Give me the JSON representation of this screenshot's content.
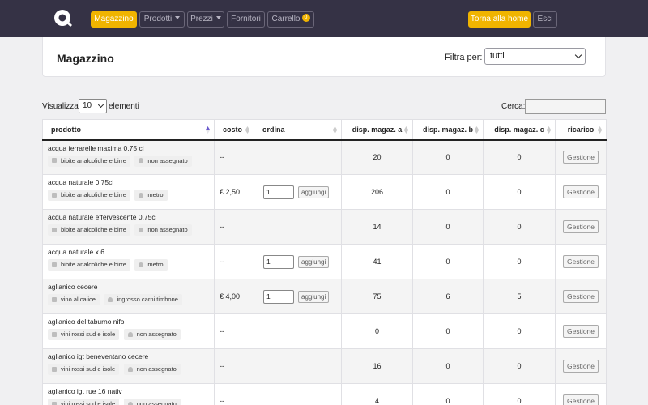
{
  "nav": {
    "items": [
      {
        "label": "Magazzino",
        "active": true
      },
      {
        "label": "Prodotti",
        "dropdown": true
      },
      {
        "label": "Prezzi",
        "dropdown": true
      },
      {
        "label": "Fornitori"
      },
      {
        "label": "Carrello",
        "badge": "0"
      }
    ],
    "home_label": "Torna alla home",
    "logout_label": "Esci"
  },
  "header": {
    "title": "Magazzino",
    "filter_label": "Filtra per:",
    "filter_value": "tutti"
  },
  "controls": {
    "show_label": "Visualizza",
    "page_length": "10",
    "entries_label": "elementi",
    "search_label": "Cerca:",
    "search_value": ""
  },
  "table": {
    "headers": [
      "prodotto",
      "costo",
      "ordina",
      "disp. magaz. a",
      "disp. magaz. b",
      "disp. magaz. c",
      "ricarico"
    ],
    "add_label": "aggiungi",
    "manage_label": "Gestione",
    "rows": [
      {
        "name": "acqua ferrarelle maxima 0.75 cl",
        "category": "bibite analcoliche e birre",
        "supplier": "non assegnato",
        "cost": "--",
        "qty": "",
        "a": "20",
        "b": "0",
        "c": "0"
      },
      {
        "name": "acqua naturale 0.75cl",
        "category": "bibite analcoliche e birre",
        "supplier": "metro",
        "cost": "€ 2,50",
        "qty": "1",
        "a": "206",
        "b": "0",
        "c": "0"
      },
      {
        "name": "acqua naturale effervescente 0.75cl",
        "category": "bibite analcoliche e birre",
        "supplier": "non assegnato",
        "cost": "--",
        "qty": "",
        "a": "14",
        "b": "0",
        "c": "0"
      },
      {
        "name": "acqua naturale x 6",
        "category": "bibite analcoliche e birre",
        "supplier": "metro",
        "cost": "--",
        "qty": "1",
        "a": "41",
        "b": "0",
        "c": "0"
      },
      {
        "name": "aglianico cecere",
        "category": "vino al calice",
        "supplier": "ingrosso carni timbone",
        "cost": "€ 4,00",
        "qty": "1",
        "a": "75",
        "b": "6",
        "c": "5"
      },
      {
        "name": "aglianico del taburno nifo",
        "category": "vini rossi sud e isole",
        "supplier": "non assegnato",
        "cost": "--",
        "qty": "",
        "a": "0",
        "b": "0",
        "c": "0"
      },
      {
        "name": "aglianico igt beneventano cecere",
        "category": "vini rossi sud e isole",
        "supplier": "non assegnato",
        "cost": "--",
        "qty": "",
        "a": "16",
        "b": "0",
        "c": "0"
      },
      {
        "name": "aglianico igt rue 16 nativ",
        "category": "vini rossi sud e isole",
        "supplier": "non assegnato",
        "cost": "--",
        "qty": "",
        "a": "4",
        "b": "0",
        "c": "0"
      }
    ]
  }
}
